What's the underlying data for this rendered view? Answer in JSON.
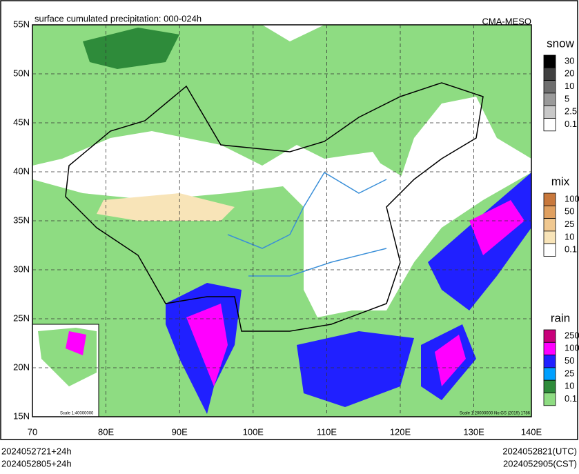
{
  "header": {
    "title": "surface cumulated precipitation: 000-024h",
    "source": "CMA-MESO"
  },
  "axes": {
    "lat_labels": [
      "55N",
      "50N",
      "45N",
      "40N",
      "35N",
      "30N",
      "25N",
      "20N",
      "15N"
    ],
    "lon_labels": [
      "70",
      "80E",
      "90E",
      "100E",
      "110E",
      "120E",
      "130E",
      "140E"
    ]
  },
  "legends": [
    {
      "title": "snow",
      "levels": [
        30,
        20,
        10,
        5,
        2.5,
        0.1
      ],
      "colors": [
        "#000000",
        "#404040",
        "#6e6e6e",
        "#9a9a9a",
        "#c8c8c8",
        "#ffffff"
      ]
    },
    {
      "title": "mix",
      "levels": [
        100,
        50,
        25,
        10,
        0.1
      ],
      "colors": [
        "#c8783c",
        "#e0a060",
        "#f0c890",
        "#f8e4b8",
        "#ffffff"
      ]
    },
    {
      "title": "rain",
      "levels": [
        250,
        100,
        50,
        25,
        10,
        0.1
      ],
      "colors": [
        "#c8007a",
        "#ff00ff",
        "#2020ff",
        "#00a0ff",
        "#2e8b3a",
        "#8edc82"
      ]
    }
  ],
  "scale_notes": {
    "main": "Scale 1:20000000 No:GS (2019) 1786",
    "inset": "Scale 1:40000000"
  },
  "footer": {
    "left": [
      "2024052721+24h",
      "2024052805+24h"
    ],
    "right": [
      "2024052821(UTC)",
      "2024052905(CST)"
    ]
  }
}
